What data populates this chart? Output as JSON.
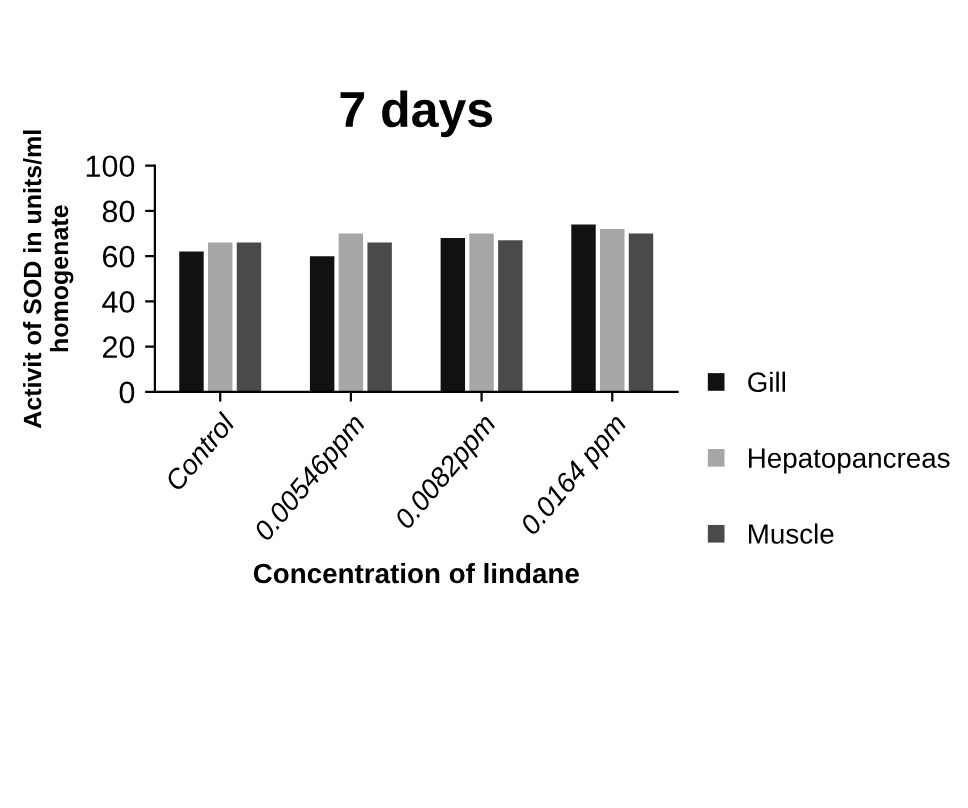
{
  "chart_data": {
    "type": "bar",
    "title": "7 days",
    "xlabel": "Concentration of lindane",
    "ylabel": "Activit of SOD in units/ml\nhomogenate",
    "categories": [
      "Control",
      "0.00546ppm",
      "0.0082ppm",
      "0.0164 ppm"
    ],
    "series": [
      {
        "name": "Gill",
        "color": "#111111",
        "values": [
          62,
          60,
          68,
          74
        ]
      },
      {
        "name": "Hepatopancreas",
        "color": "#a6a6a6",
        "values": [
          66,
          70,
          70,
          72
        ]
      },
      {
        "name": "Muscle",
        "color": "#4a4a4a",
        "values": [
          66,
          66,
          67,
          70
        ]
      }
    ],
    "ylim": [
      0,
      100
    ],
    "yticks": [
      0,
      20,
      40,
      60,
      80,
      100
    ],
    "grid": false,
    "legend": "right"
  }
}
